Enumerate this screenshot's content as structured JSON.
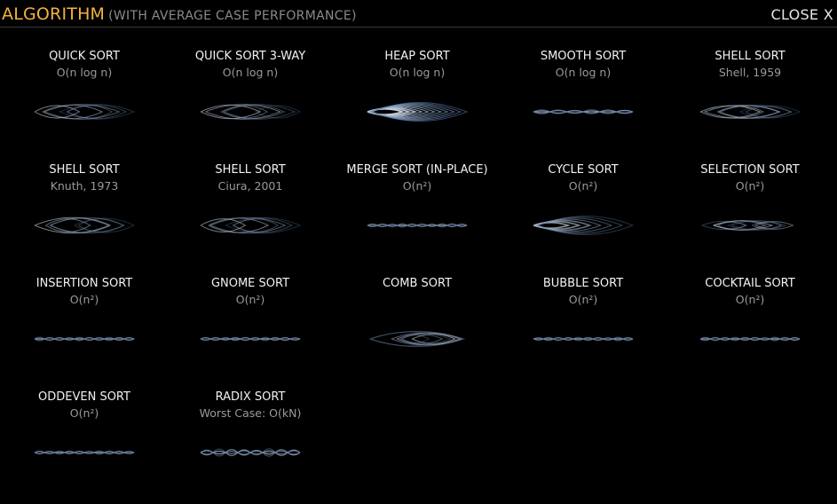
{
  "header": {
    "title": "ALGORITHM",
    "subtitle": "(WITH AVERAGE CASE PERFORMANCE)",
    "close_label": "CLOSE X"
  },
  "colors": {
    "accent": "#f2b33d",
    "line_light": "#c8d0dc",
    "line_blue": "#5b7fb0"
  },
  "algorithms": [
    {
      "name": "QUICK SORT",
      "perf": "O(n log n)",
      "viz": {
        "style": "wide",
        "width": 0.42,
        "loops": 4,
        "intensity": 0.6
      }
    },
    {
      "name": "QUICK SORT 3-WAY",
      "perf": "O(n log n)",
      "viz": {
        "style": "wide",
        "width": 0.42,
        "loops": 4,
        "intensity": 0.6
      }
    },
    {
      "name": "HEAP SORT",
      "perf": "O(n log n)",
      "viz": {
        "style": "heap",
        "width": 0.47,
        "loops": 9,
        "intensity": 1.0
      }
    },
    {
      "name": "SMOOTH SORT",
      "perf": "O(n log n)",
      "viz": {
        "style": "braid",
        "width": 0.12,
        "loops": 6,
        "intensity": 0.6
      }
    },
    {
      "name": "SHELL SORT",
      "perf": "Shell, 1959",
      "viz": {
        "style": "wide",
        "width": 0.38,
        "loops": 5,
        "intensity": 0.6
      }
    },
    {
      "name": "SHELL SORT",
      "perf": "Knuth, 1973",
      "viz": {
        "style": "wide",
        "width": 0.44,
        "loops": 4,
        "intensity": 0.6
      }
    },
    {
      "name": "SHELL SORT",
      "perf": "Ciura, 2001",
      "viz": {
        "style": "wide",
        "width": 0.44,
        "loops": 4,
        "intensity": 0.6
      }
    },
    {
      "name": "MERGE SORT (IN-PLACE)",
      "perf": "O(n²)",
      "viz": {
        "style": "braid",
        "width": 0.08,
        "loops": 10,
        "intensity": 0.5
      }
    },
    {
      "name": "CYCLE SORT",
      "perf": "O(n²)",
      "viz": {
        "style": "heap",
        "width": 0.47,
        "loops": 5,
        "intensity": 0.7
      }
    },
    {
      "name": "SELECTION SORT",
      "perf": "O(n²)",
      "viz": {
        "style": "mixed",
        "width": 0.34,
        "loops": 6,
        "intensity": 0.55
      }
    },
    {
      "name": "INSERTION SORT",
      "perf": "O(n²)",
      "viz": {
        "style": "braid",
        "width": 0.06,
        "loops": 10,
        "intensity": 0.5
      }
    },
    {
      "name": "GNOME SORT",
      "perf": "O(n²)",
      "viz": {
        "style": "braid",
        "width": 0.06,
        "loops": 10,
        "intensity": 0.5
      }
    },
    {
      "name": "COMB SORT",
      "perf": "",
      "viz": {
        "style": "mixed",
        "width": 0.4,
        "loops": 5,
        "intensity": 0.6
      }
    },
    {
      "name": "BUBBLE SORT",
      "perf": "O(n²)",
      "viz": {
        "style": "braid",
        "width": 0.06,
        "loops": 10,
        "intensity": 0.5
      }
    },
    {
      "name": "COCKTAIL SORT",
      "perf": "O(n²)",
      "viz": {
        "style": "braid",
        "width": 0.06,
        "loops": 10,
        "intensity": 0.5
      }
    },
    {
      "name": "ODDEVEN SORT",
      "perf": "O(n²)",
      "viz": {
        "style": "braid",
        "width": 0.06,
        "loops": 10,
        "intensity": 0.5
      }
    },
    {
      "name": "RADIX SORT",
      "perf": "Worst Case: O(kN)",
      "viz": {
        "style": "braid",
        "width": 0.25,
        "loops": 8,
        "intensity": 0.6
      }
    }
  ]
}
